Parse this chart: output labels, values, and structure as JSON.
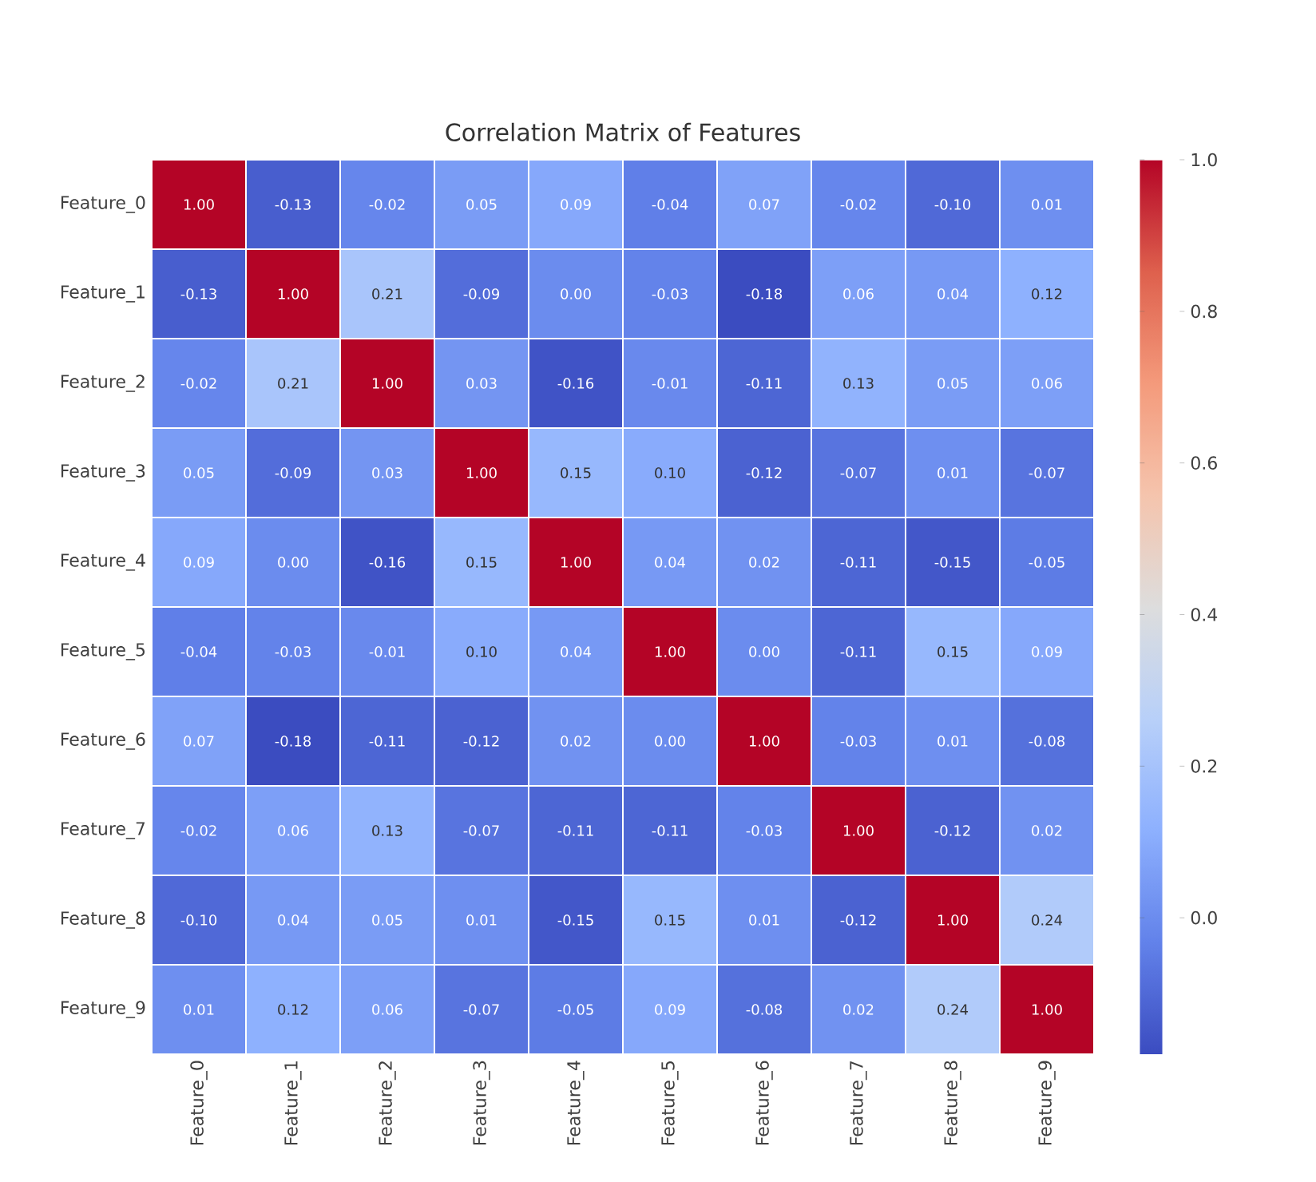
{
  "chart_data": {
    "type": "heatmap",
    "title": "Correlation Matrix of Features",
    "categories": [
      "Feature_0",
      "Feature_1",
      "Feature_2",
      "Feature_3",
      "Feature_4",
      "Feature_5",
      "Feature_6",
      "Feature_7",
      "Feature_8",
      "Feature_9"
    ],
    "y_categories": [
      "Feature_0",
      "Feature_1",
      "Feature_2",
      "Feature_3",
      "Feature_4",
      "Feature_5",
      "Feature_6",
      "Feature_7",
      "Feature_8",
      "Feature_9"
    ],
    "cells": [
      [
        1.0,
        -0.13,
        -0.02,
        0.05,
        0.09,
        -0.04,
        0.07,
        -0.02,
        -0.1,
        0.01
      ],
      [
        -0.13,
        1.0,
        0.21,
        -0.09,
        0.0,
        -0.03,
        -0.18,
        0.06,
        0.04,
        0.12
      ],
      [
        -0.02,
        0.21,
        1.0,
        0.03,
        -0.16,
        -0.01,
        -0.11,
        0.13,
        0.05,
        0.06
      ],
      [
        0.05,
        -0.09,
        0.03,
        1.0,
        0.15,
        0.1,
        -0.12,
        -0.07,
        0.01,
        -0.07
      ],
      [
        0.09,
        0.0,
        -0.16,
        0.15,
        1.0,
        0.04,
        0.02,
        -0.11,
        -0.15,
        -0.05
      ],
      [
        -0.04,
        -0.03,
        -0.01,
        0.1,
        0.04,
        1.0,
        0.0,
        -0.11,
        0.15,
        0.09
      ],
      [
        0.07,
        -0.18,
        -0.11,
        -0.12,
        0.02,
        0.0,
        1.0,
        -0.03,
        0.01,
        -0.08
      ],
      [
        -0.02,
        0.06,
        0.13,
        -0.07,
        -0.11,
        -0.11,
        -0.03,
        1.0,
        -0.12,
        0.02
      ],
      [
        -0.1,
        0.04,
        0.05,
        0.01,
        -0.15,
        0.15,
        0.01,
        -0.12,
        1.0,
        0.24
      ],
      [
        0.01,
        0.12,
        0.06,
        -0.07,
        -0.05,
        0.09,
        -0.08,
        0.02,
        0.24,
        1.0
      ]
    ],
    "cell_labels": [
      [
        "1.00",
        "-0.13",
        "-0.02",
        "0.05",
        "0.09",
        "-0.04",
        "0.07",
        "-0.02",
        "-0.10",
        "0.01"
      ],
      [
        "-0.13",
        "1.00",
        "0.21",
        "-0.09",
        "0.00",
        "-0.03",
        "-0.18",
        "0.06",
        "0.04",
        "0.12"
      ],
      [
        "-0.02",
        "0.21",
        "1.00",
        "0.03",
        "-0.16",
        "-0.01",
        "-0.11",
        "0.13",
        "0.05",
        "0.06"
      ],
      [
        "0.05",
        "-0.09",
        "0.03",
        "1.00",
        "0.15",
        "0.10",
        "-0.12",
        "-0.07",
        "0.01",
        "-0.07"
      ],
      [
        "0.09",
        "0.00",
        "-0.16",
        "0.15",
        "1.00",
        "0.04",
        "0.02",
        "-0.11",
        "-0.15",
        "-0.05"
      ],
      [
        "-0.04",
        "-0.03",
        "-0.01",
        "0.10",
        "0.04",
        "1.00",
        "0.00",
        "-0.11",
        "0.15",
        "0.09"
      ],
      [
        "0.07",
        "-0.18",
        "-0.11",
        "-0.12",
        "0.02",
        "0.00",
        "1.00",
        "-0.03",
        "0.01",
        "-0.08"
      ],
      [
        "-0.02",
        "0.06",
        "0.13",
        "-0.07",
        "-0.11",
        "-0.11",
        "-0.03",
        "1.00",
        "-0.12",
        "0.02"
      ],
      [
        "-0.10",
        "0.04",
        "0.05",
        "0.01",
        "-0.15",
        "0.15",
        "0.01",
        "-0.12",
        "1.00",
        "0.24"
      ],
      [
        "0.01",
        "0.12",
        "0.06",
        "-0.07",
        "-0.05",
        "0.09",
        "-0.08",
        "0.02",
        "0.24",
        "1.00"
      ]
    ],
    "clim": [
      -0.18,
      1.0
    ],
    "cticks": [
      {
        "value": 0,
        "label": "0.0"
      },
      {
        "value": 0.2,
        "label": "0.2"
      },
      {
        "value": 0.4,
        "label": "0.4"
      },
      {
        "value": 0.6,
        "label": "0.6"
      },
      {
        "value": 0.8,
        "label": "0.8"
      },
      {
        "value": 1.0,
        "label": "1.0"
      }
    ]
  }
}
